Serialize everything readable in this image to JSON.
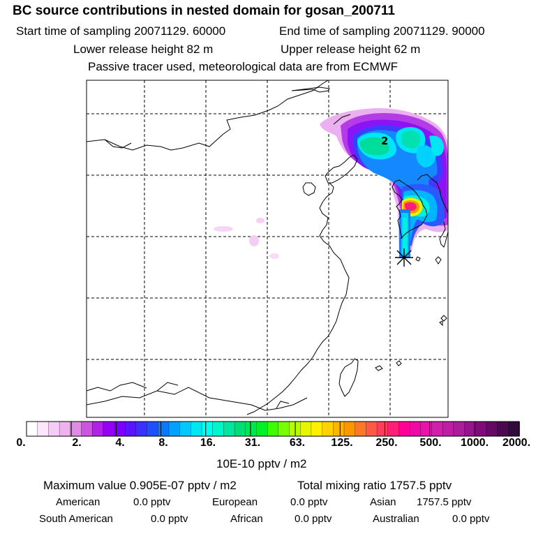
{
  "header": {
    "title": "BC  source contributions in nested domain for gosan_200711",
    "start_label": "Start time of sampling 20071129. 60000",
    "end_label": "End time of sampling 20071129. 90000",
    "lower_label": "Lower release height   82 m",
    "upper_label": "Upper release height   62 m",
    "note": "Passive tracer used, meteorological data are from ECMWF"
  },
  "map": {
    "contour_label": "2",
    "receptor_marker": "gosan receptor"
  },
  "colorbar": {
    "ticks": [
      "0.",
      "2.",
      "4.",
      "8.",
      "16.",
      "31.",
      "63.",
      "125.",
      "250.",
      "500.",
      "1000.",
      "2000."
    ],
    "unit": "10E-10 pptv / m2",
    "colors": [
      "#ffffff",
      "#fbe6fb",
      "#f5ccf5",
      "#eeb2ef",
      "#e08ce6",
      "#cc55e0",
      "#b222e6",
      "#9500f0",
      "#7a00ff",
      "#5a14ff",
      "#3c32ff",
      "#1e50ff",
      "#0a78ff",
      "#00a0ff",
      "#00c8ff",
      "#00e6f5",
      "#00fff0",
      "#00f5c8",
      "#00e6a0",
      "#00dc78",
      "#00e650",
      "#00f028",
      "#3cff00",
      "#78ff00",
      "#b4ff00",
      "#e6f500",
      "#fff000",
      "#ffd200",
      "#ffb400",
      "#ff9600",
      "#ff7828",
      "#ff5a46",
      "#ff3c5a",
      "#ff1e78",
      "#ff0096",
      "#f00aa5",
      "#e614aa",
      "#d21eaa",
      "#be1ea5",
      "#aa1e9b",
      "#96148c",
      "#7f0a7a",
      "#640a64",
      "#4b0a50",
      "#320a3c"
    ]
  },
  "summary": {
    "max_value": "Maximum value  0.905E-07 pptv / m2",
    "total_mixing": "Total mixing ratio     1757.5 pptv",
    "rows": [
      [
        {
          "name": "American",
          "value": "0.0 pptv"
        },
        {
          "name": "European",
          "value": "0.0 pptv"
        },
        {
          "name": "Asian",
          "value": "1757.5 pptv"
        }
      ],
      [
        {
          "name": "South American",
          "value": "0.0 pptv"
        },
        {
          "name": "African",
          "value": "0.0 pptv"
        },
        {
          "name": "Australian",
          "value": "0.0 pptv"
        }
      ]
    ]
  }
}
